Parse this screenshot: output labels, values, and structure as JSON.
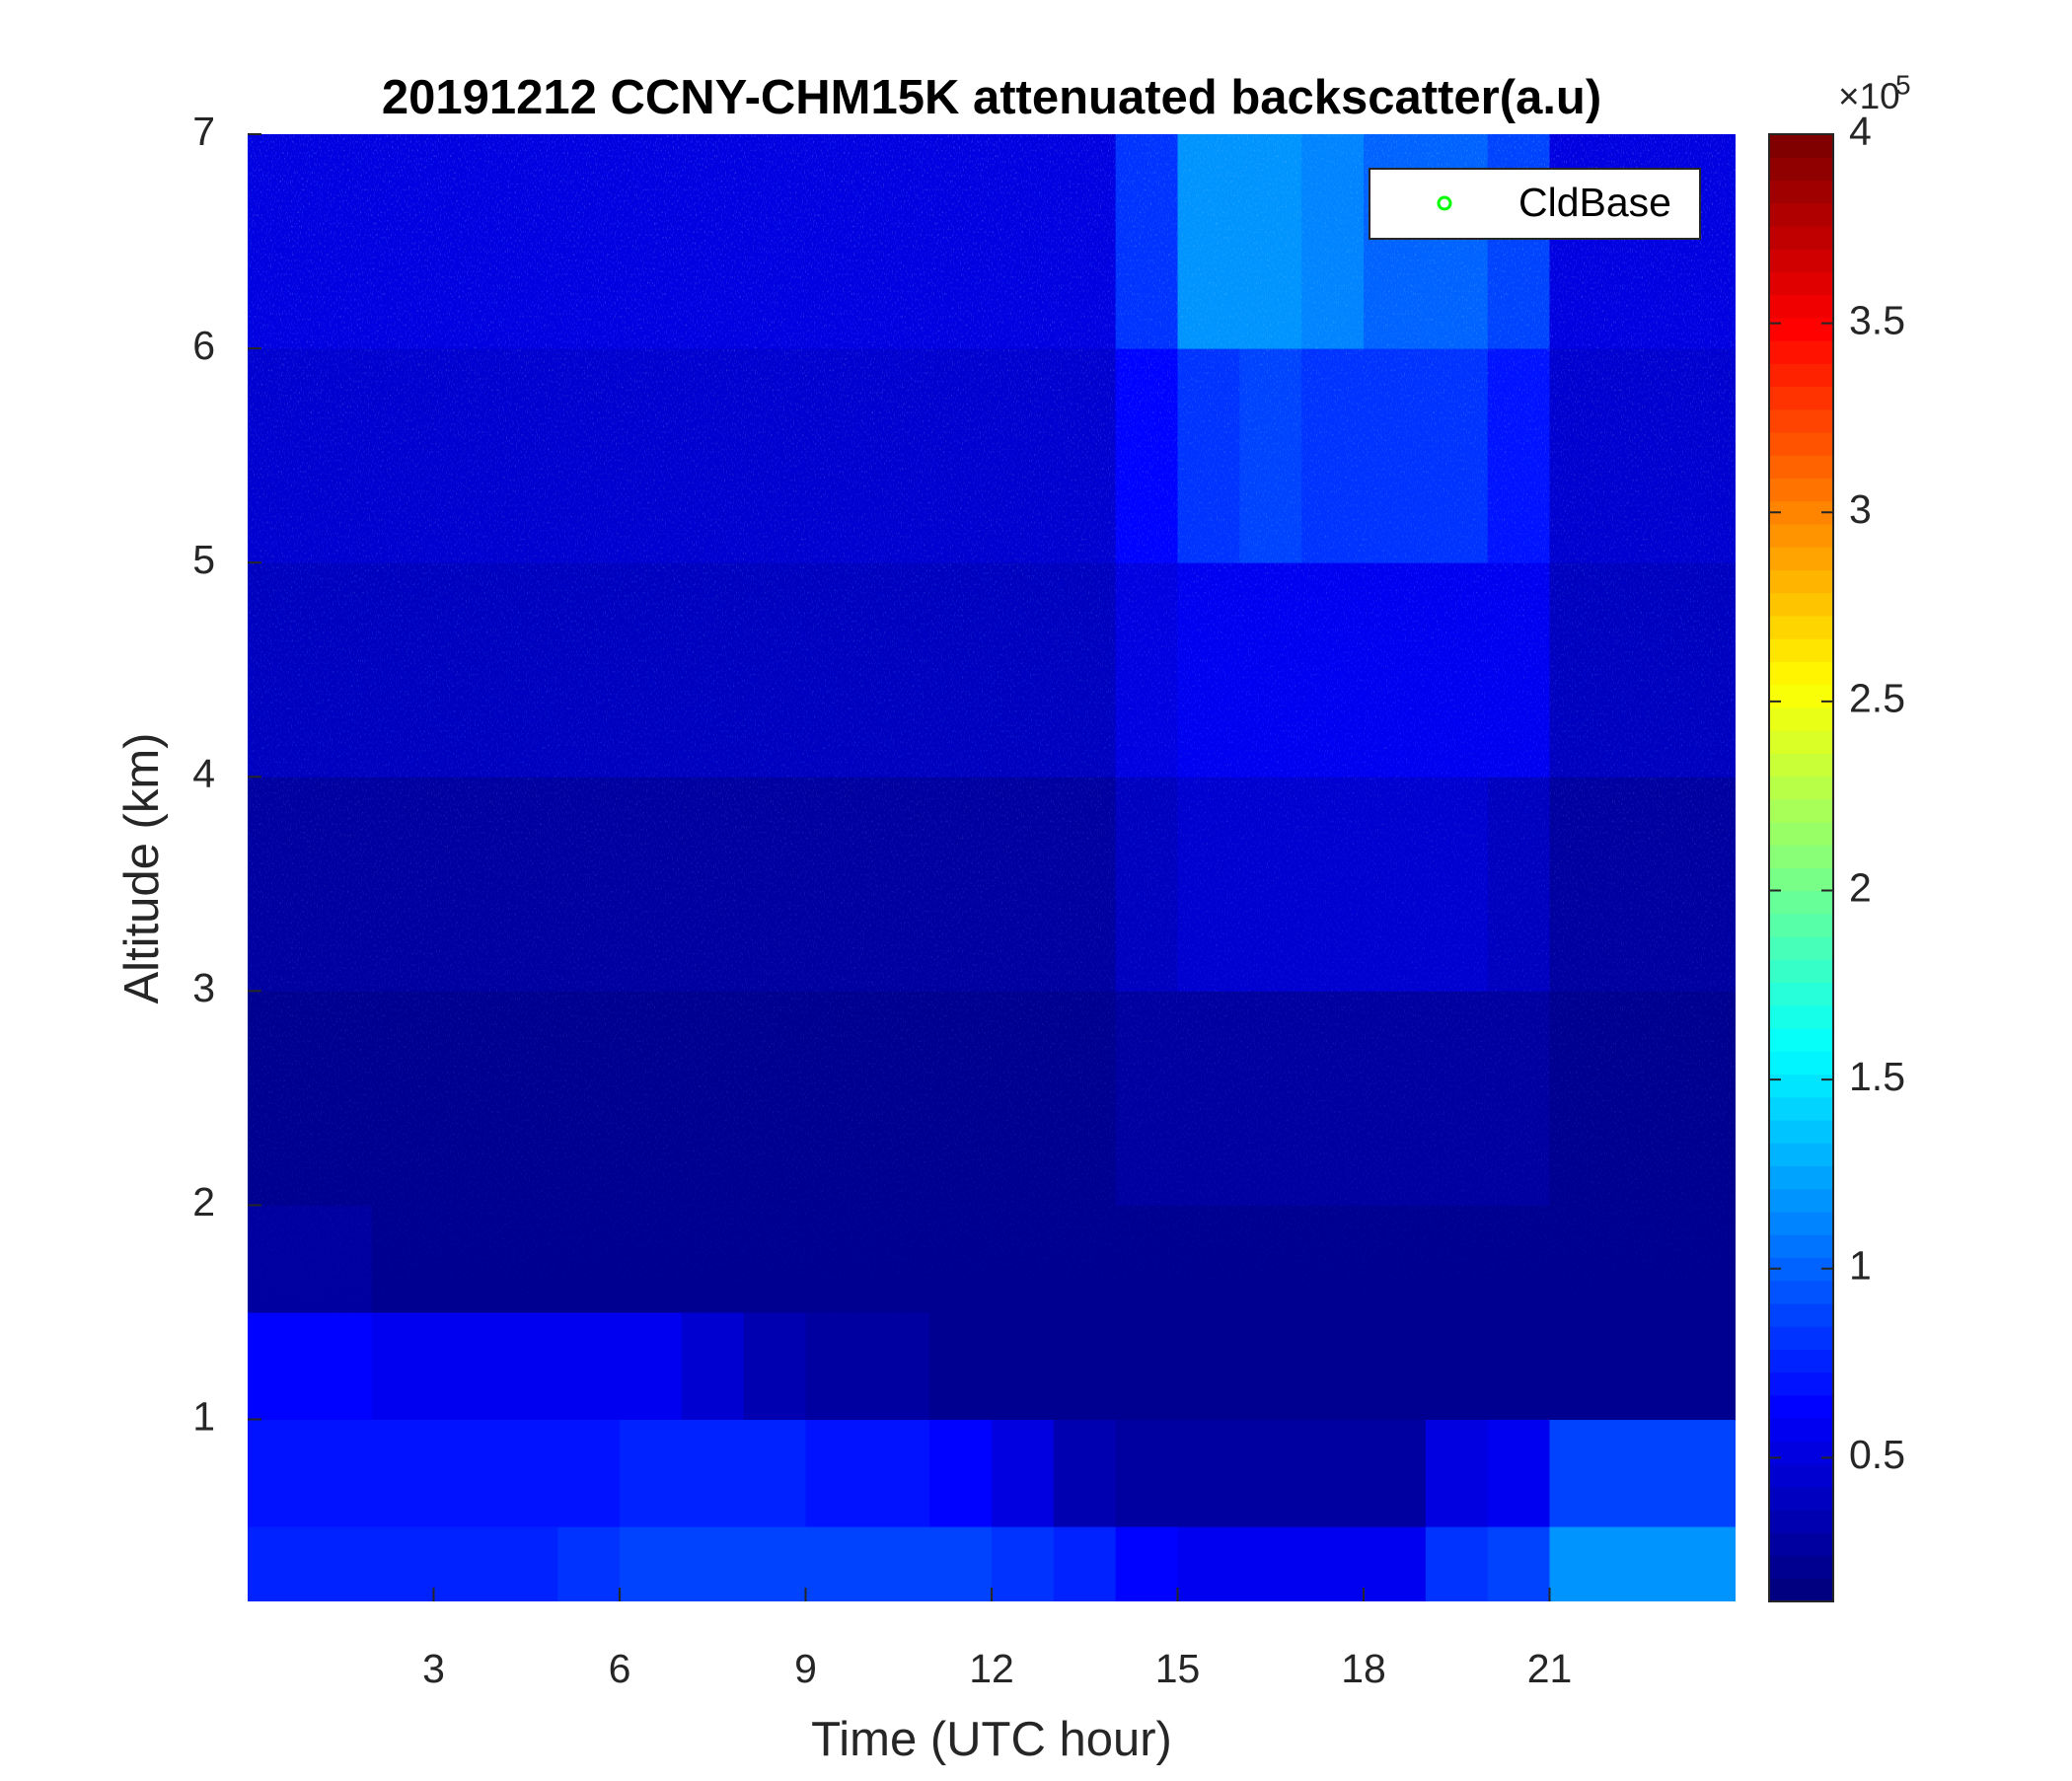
{
  "chart_data": {
    "type": "heatmap",
    "title": "20191212 CCNY-CHM15K attenuated backscatter(a.u)",
    "x_label": "Time (UTC hour)",
    "y_label": "Altitude (km)",
    "xlim": [
      0,
      24
    ],
    "xticks": [
      3,
      6,
      9,
      12,
      15,
      18,
      21
    ],
    "ylim": [
      0.15,
      7
    ],
    "yticks": [
      1,
      2,
      3,
      4,
      5,
      6,
      7
    ],
    "xbins": [
      0,
      1,
      2,
      3,
      4,
      5,
      6,
      7,
      8,
      9,
      10,
      11,
      12,
      13,
      14,
      15,
      16,
      17,
      18,
      19,
      20,
      21,
      22,
      23,
      24
    ],
    "ybins": [
      0.15,
      0.5,
      1,
      1.5,
      2,
      3,
      4,
      5,
      6,
      7
    ],
    "z": [
      [
        0.75,
        0.75,
        0.75,
        0.75,
        0.75,
        0.8,
        0.85,
        0.85,
        0.9,
        0.9,
        0.85,
        0.85,
        0.8,
        0.75,
        0.65,
        0.6,
        0.6,
        0.6,
        0.6,
        0.8,
        0.85,
        1.2,
        1.2,
        1.2
      ],
      [
        0.7,
        0.7,
        0.7,
        0.7,
        0.7,
        0.7,
        0.75,
        0.75,
        0.75,
        0.7,
        0.7,
        0.65,
        0.5,
        0.35,
        0.25,
        0.25,
        0.25,
        0.25,
        0.25,
        0.5,
        0.6,
        0.9,
        0.9,
        0.85
      ],
      [
        0.65,
        0.65,
        0.55,
        0.6,
        0.6,
        0.6,
        0.6,
        0.45,
        0.35,
        0.3,
        0.25,
        0.2,
        0.2,
        0.2,
        0.2,
        0.2,
        0.2,
        0.2,
        0.2,
        0.2,
        0.2,
        0.2,
        0.2,
        0.2
      ],
      [
        0.25,
        0.3,
        0.2,
        0.2,
        0.2,
        0.2,
        0.2,
        0.2,
        0.2,
        0.2,
        0.2,
        0.2,
        0.2,
        0.2,
        0.2,
        0.22,
        0.22,
        0.22,
        0.22,
        0.22,
        0.2,
        0.2,
        0.2,
        0.2
      ],
      [
        0.22,
        0.22,
        0.22,
        0.22,
        0.22,
        0.22,
        0.22,
        0.22,
        0.22,
        0.22,
        0.22,
        0.22,
        0.22,
        0.22,
        0.25,
        0.3,
        0.3,
        0.3,
        0.3,
        0.3,
        0.28,
        0.22,
        0.22,
        0.22
      ],
      [
        0.3,
        0.3,
        0.3,
        0.3,
        0.3,
        0.3,
        0.3,
        0.3,
        0.3,
        0.3,
        0.3,
        0.3,
        0.3,
        0.3,
        0.4,
        0.45,
        0.45,
        0.45,
        0.45,
        0.45,
        0.42,
        0.3,
        0.3,
        0.3
      ],
      [
        0.38,
        0.38,
        0.38,
        0.38,
        0.38,
        0.38,
        0.38,
        0.38,
        0.38,
        0.38,
        0.38,
        0.38,
        0.38,
        0.38,
        0.5,
        0.6,
        0.6,
        0.6,
        0.6,
        0.6,
        0.55,
        0.38,
        0.38,
        0.38
      ],
      [
        0.45,
        0.45,
        0.45,
        0.45,
        0.45,
        0.45,
        0.45,
        0.45,
        0.45,
        0.45,
        0.45,
        0.45,
        0.45,
        0.45,
        0.65,
        0.8,
        0.85,
        0.8,
        0.8,
        0.8,
        0.7,
        0.45,
        0.45,
        0.45
      ],
      [
        0.5,
        0.5,
        0.5,
        0.5,
        0.5,
        0.5,
        0.5,
        0.5,
        0.5,
        0.5,
        0.5,
        0.5,
        0.5,
        0.5,
        0.8,
        1.2,
        1.2,
        1.1,
        1.0,
        1.0,
        0.9,
        0.5,
        0.5,
        0.5
      ]
    ],
    "colorbar": {
      "clim": [
        0.12,
        4
      ],
      "ticks": [
        0.5,
        1,
        1.5,
        2,
        2.5,
        3,
        3.5,
        4
      ],
      "exponent_label": "×10",
      "exponent": 5
    },
    "legend": {
      "name": "CldBase",
      "color": "#00ff00",
      "marker": "o"
    }
  }
}
